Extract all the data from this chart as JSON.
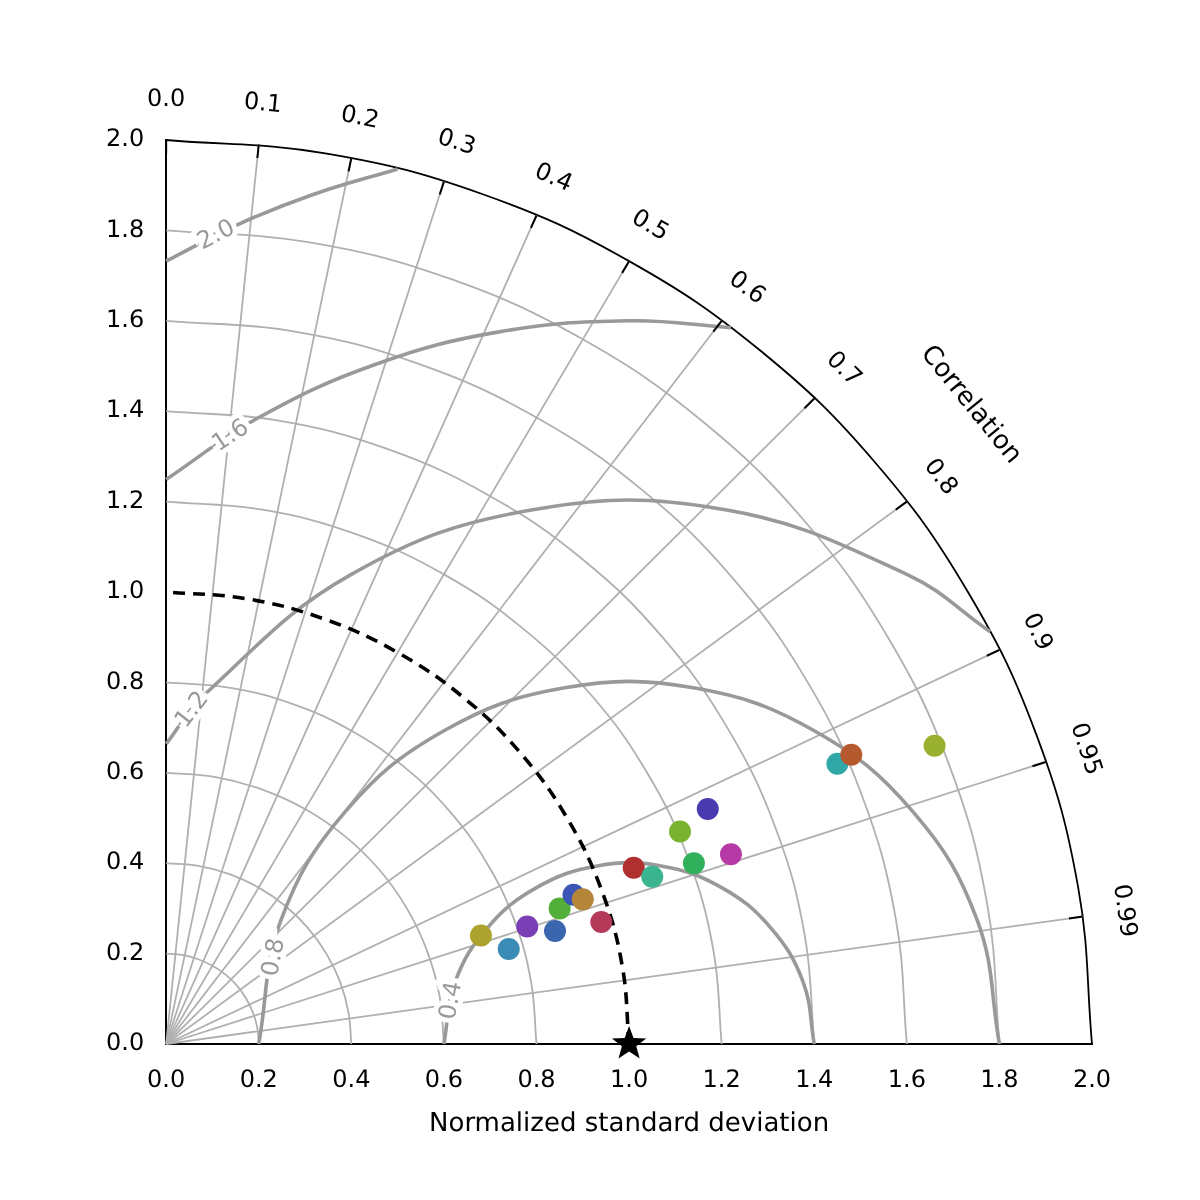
{
  "chart_data": {
    "type": "scatter",
    "xlabel": "Normalized standard deviation",
    "xlim": [
      0,
      2
    ],
    "ylim": [
      0,
      2
    ],
    "xticks": [
      {
        "value": 0,
        "label": "0.0"
      },
      {
        "value": 0.2,
        "label": "0.2"
      },
      {
        "value": 0.4,
        "label": "0.4"
      },
      {
        "value": 0.6,
        "label": "0.6"
      },
      {
        "value": 0.8,
        "label": "0.8"
      },
      {
        "value": 1,
        "label": "1.0"
      },
      {
        "value": 1.2,
        "label": "1.2"
      },
      {
        "value": 1.4,
        "label": "1.4"
      },
      {
        "value": 1.6,
        "label": "1.6"
      },
      {
        "value": 1.8,
        "label": "1.8"
      },
      {
        "value": 2,
        "label": "2.0"
      }
    ],
    "yticks": [
      {
        "value": 0,
        "label": "0.0"
      },
      {
        "value": 0.2,
        "label": "0.2"
      },
      {
        "value": 0.4,
        "label": "0.4"
      },
      {
        "value": 0.6,
        "label": "0.6"
      },
      {
        "value": 0.8,
        "label": "0.8"
      },
      {
        "value": 1,
        "label": "1.0"
      },
      {
        "value": 1.2,
        "label": "1.2"
      },
      {
        "value": 1.4,
        "label": "1.4"
      },
      {
        "value": 1.6,
        "label": "1.6"
      },
      {
        "value": 1.8,
        "label": "1.8"
      },
      {
        "value": 2,
        "label": "2.0"
      }
    ],
    "legend": false,
    "series": [
      {
        "type": "line",
        "color": "#b0b0b0",
        "line_style": "solid",
        "x": [
          0.2,
          0.197,
          0.188,
          0.173,
          0.153,
          0.129,
          0.1,
          0.068,
          0.035,
          0
        ],
        "values": [
          0,
          0.035,
          0.068,
          0.1,
          0.129,
          0.153,
          0.173,
          0.188,
          0.197,
          0.2
        ]
      },
      {
        "type": "line",
        "color": "#b0b0b0",
        "line_style": "solid",
        "x": [
          0.4,
          0.394,
          0.376,
          0.346,
          0.306,
          0.257,
          0.2,
          0.137,
          0.069,
          0
        ],
        "values": [
          0,
          0.069,
          0.137,
          0.2,
          0.257,
          0.306,
          0.346,
          0.376,
          0.394,
          0.4
        ]
      },
      {
        "type": "line",
        "color": "#b0b0b0",
        "line_style": "solid",
        "x": [
          0.6,
          0.591,
          0.564,
          0.52,
          0.46,
          0.386,
          0.3,
          0.205,
          0.104,
          0
        ],
        "values": [
          0,
          0.104,
          0.205,
          0.3,
          0.386,
          0.46,
          0.52,
          0.564,
          0.591,
          0.6
        ]
      },
      {
        "type": "line",
        "color": "#b0b0b0",
        "line_style": "solid",
        "x": [
          0.8,
          0.788,
          0.752,
          0.693,
          0.613,
          0.514,
          0.4,
          0.274,
          0.139,
          0
        ],
        "values": [
          0,
          0.139,
          0.274,
          0.4,
          0.514,
          0.613,
          0.693,
          0.752,
          0.788,
          0.8
        ]
      },
      {
        "type": "line",
        "color": "#b0b0b0",
        "line_style": "solid",
        "x": [
          1.2,
          1.182,
          1.128,
          1.039,
          0.919,
          0.771,
          0.6,
          0.41,
          0.208,
          0
        ],
        "values": [
          0,
          0.208,
          0.41,
          0.6,
          0.771,
          0.919,
          1.039,
          1.128,
          1.182,
          1.2
        ]
      },
      {
        "type": "line",
        "color": "#b0b0b0",
        "line_style": "solid",
        "x": [
          1.4,
          1.379,
          1.316,
          1.212,
          1.072,
          0.9,
          0.7,
          0.479,
          0.243,
          0
        ],
        "values": [
          0,
          0.243,
          0.479,
          0.7,
          0.9,
          1.072,
          1.212,
          1.316,
          1.379,
          1.4
        ]
      },
      {
        "type": "line",
        "color": "#b0b0b0",
        "line_style": "solid",
        "x": [
          1.6,
          1.576,
          1.504,
          1.386,
          1.226,
          1.028,
          0.8,
          0.547,
          0.278,
          0
        ],
        "values": [
          0,
          0.278,
          0.547,
          0.8,
          1.028,
          1.226,
          1.386,
          1.504,
          1.576,
          1.6
        ]
      },
      {
        "type": "line",
        "color": "#b0b0b0",
        "line_style": "solid",
        "x": [
          1.8,
          1.773,
          1.692,
          1.559,
          1.379,
          1.157,
          0.9,
          0.616,
          0.313,
          0
        ],
        "values": [
          0,
          0.313,
          0.616,
          0.9,
          1.157,
          1.379,
          1.559,
          1.692,
          1.773,
          1.8
        ]
      },
      {
        "type": "line",
        "color": "#000000",
        "line_style": "solid",
        "x": [
          2,
          1.97,
          1.88,
          1.732,
          1.532,
          1.286,
          1,
          0.684,
          0.347,
          0
        ],
        "values": [
          0,
          0.347,
          0.684,
          1,
          1.286,
          1.532,
          1.732,
          1.88,
          1.97,
          2
        ]
      },
      {
        "type": "line",
        "color": "#b0b0b0",
        "line_style": "solid",
        "x": [
          0,
          0.2
        ],
        "values": [
          0,
          1.99
        ]
      },
      {
        "type": "line",
        "color": "#b0b0b0",
        "line_style": "solid",
        "x": [
          0,
          0.4
        ],
        "values": [
          0,
          1.96
        ]
      },
      {
        "type": "line",
        "color": "#b0b0b0",
        "line_style": "solid",
        "x": [
          0,
          0.6
        ],
        "values": [
          0,
          1.908
        ]
      },
      {
        "type": "line",
        "color": "#b0b0b0",
        "line_style": "solid",
        "x": [
          0,
          0.8
        ],
        "values": [
          0,
          1.833
        ]
      },
      {
        "type": "line",
        "color": "#b0b0b0",
        "line_style": "solid",
        "x": [
          0,
          1
        ],
        "values": [
          0,
          1.732
        ]
      },
      {
        "type": "line",
        "color": "#b0b0b0",
        "line_style": "solid",
        "x": [
          0,
          1.2
        ],
        "values": [
          0,
          1.6
        ]
      },
      {
        "type": "line",
        "color": "#b0b0b0",
        "line_style": "solid",
        "x": [
          0,
          1.4
        ],
        "values": [
          0,
          1.428
        ]
      },
      {
        "type": "line",
        "color": "#b0b0b0",
        "line_style": "solid",
        "x": [
          0,
          1.6
        ],
        "values": [
          0,
          1.2
        ]
      },
      {
        "type": "line",
        "color": "#b0b0b0",
        "line_style": "solid",
        "x": [
          0,
          1.8
        ],
        "values": [
          0,
          0.872
        ]
      },
      {
        "type": "line",
        "color": "#b0b0b0",
        "line_style": "solid",
        "x": [
          0,
          1.9
        ],
        "values": [
          0,
          0.624
        ]
      },
      {
        "type": "line",
        "color": "#b0b0b0",
        "line_style": "solid",
        "x": [
          0,
          1.98
        ],
        "values": [
          0,
          0.282
        ]
      },
      {
        "type": "line",
        "name": "0.4",
        "color": "#999999",
        "line_style": "solid",
        "x": [
          0.6,
          0.624,
          0.694,
          0.8,
          0.931,
          1.069,
          1.2,
          1.306,
          1.376,
          1.4
        ],
        "values": [
          0,
          0.137,
          0.257,
          0.346,
          0.394,
          0.394,
          0.346,
          0.257,
          0.137,
          0
        ]
      },
      {
        "type": "line",
        "name": "0.8",
        "color": "#999999",
        "line_style": "solid",
        "x": [
          0.2,
          0.248,
          0.387,
          0.6,
          0.861,
          1.139,
          1.4,
          1.613,
          1.752,
          1.8
        ],
        "values": [
          0,
          0.274,
          0.514,
          0.693,
          0.788,
          0.788,
          0.693,
          0.514,
          0.274,
          0
        ]
      },
      {
        "type": "line",
        "name": "1.2",
        "color": "#999999",
        "line_style": "solid",
        "x": [
          0,
          0.081,
          0.4,
          0.792,
          1.208,
          1.6,
          1.78
        ],
        "values": [
          0.664,
          0.771,
          1.039,
          1.182,
          1.182,
          1.039,
          0.912
        ]
      },
      {
        "type": "line",
        "name": "1.6",
        "color": "#999999",
        "line_style": "solid",
        "x": [
          0,
          0.2,
          0.453,
          0.722,
          1,
          1.22
        ],
        "values": [
          1.249,
          1.386,
          1.504,
          1.576,
          1.6,
          1.585
        ]
      },
      {
        "type": "line",
        "name": "2.0",
        "color": "#999999",
        "line_style": "solid",
        "x": [
          0,
          0.155,
          0.316,
          0.5
        ],
        "values": [
          1.732,
          1.813,
          1.879,
          1.936
        ]
      },
      {
        "type": "line",
        "color": "#000000",
        "line_style": "dashed",
        "x": [
          1,
          0.985,
          0.94,
          0.866,
          0.766,
          0.643,
          0.5,
          0.342,
          0.174,
          0
        ],
        "values": [
          0,
          0.174,
          0.342,
          0.5,
          0.643,
          0.766,
          0.866,
          0.94,
          0.985,
          1
        ]
      },
      {
        "marker": "circle",
        "x": [
          0.68,
          0.74,
          0.78,
          0.84,
          0.85,
          0.88,
          0.9,
          0.94,
          1.01,
          1.05,
          1.14,
          1.11,
          1.17,
          1.22,
          1.45,
          1.48,
          1.66
        ],
        "values": [
          0.24,
          0.21,
          0.26,
          0.25,
          0.3,
          0.33,
          0.32,
          0.27,
          0.39,
          0.37,
          0.4,
          0.47,
          0.52,
          0.42,
          0.62,
          0.64,
          0.66
        ],
        "colors": [
          "#aca22e",
          "#3a8bb5",
          "#7a3fb5",
          "#3a66b0",
          "#52b03a",
          "#3a55b5",
          "#b5853a",
          "#b53a5a",
          "#b03030",
          "#3ab58f",
          "#30b05a",
          "#7ab32f",
          "#4a3ab0",
          "#b53aa5",
          "#30a8a8",
          "#b55a2f",
          "#9ab02f"
        ]
      },
      {
        "marker": "star",
        "color": "#000000",
        "x": [
          1
        ],
        "values": [
          0
        ]
      }
    ],
    "annotations": [
      "Correlation",
      {
        "text": "0.0",
        "x": 0,
        "y": 2
      },
      {
        "text": "0.1",
        "x": 0.2,
        "y": 1.99
      },
      {
        "text": "0.2",
        "x": 0.4,
        "y": 1.96
      },
      {
        "text": "0.3",
        "x": 0.6,
        "y": 1.908
      },
      {
        "text": "0.4",
        "x": 0.8,
        "y": 1.833
      },
      {
        "text": "0.5",
        "x": 1,
        "y": 1.732
      },
      {
        "text": "0.6",
        "x": 1.2,
        "y": 1.6
      },
      {
        "text": "0.7",
        "x": 1.4,
        "y": 1.428
      },
      {
        "text": "0.8",
        "x": 1.6,
        "y": 1.2
      },
      {
        "text": "0.9",
        "x": 1.8,
        "y": 0.872
      },
      {
        "text": "0.95",
        "x": 1.9,
        "y": 0.624
      },
      {
        "text": "0.99",
        "x": 1.98,
        "y": 0.282
      }
    ]
  }
}
